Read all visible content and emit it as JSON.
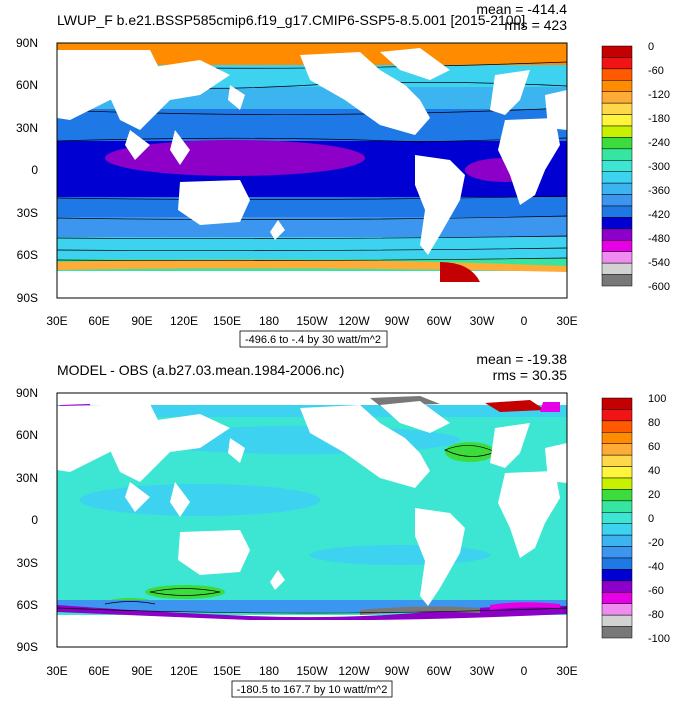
{
  "panels": [
    {
      "title": "LWUP_F b.e21.BSSP585cmip6.f19_g17.CMIP6-SSP5-8.5.001 [2015-2100]",
      "mean": "mean = -414.4",
      "rms": "rms = 423",
      "range_label": "-496.6 to -.4 by 30 watt/m^2",
      "lat_labels": [
        "90N",
        "60N",
        "30N",
        "0",
        "30S",
        "60S",
        "90S"
      ],
      "lon_labels": [
        "30E",
        "60E",
        "90E",
        "120E",
        "150E",
        "180",
        "150W",
        "120W",
        "90W",
        "60W",
        "30W",
        "0",
        "30E"
      ],
      "colorbar": {
        "labels": [
          "0",
          "-60",
          "-120",
          "-180",
          "-240",
          "-300",
          "-360",
          "-420",
          "-480",
          "-540",
          "-600"
        ],
        "colors": [
          "#c40000",
          "#f01414",
          "#ff5a00",
          "#ff8c00",
          "#ffab38",
          "#ffd84a",
          "#fff53c",
          "#c8f000",
          "#3cdc3c",
          "#36e6a0",
          "#3ce6d2",
          "#3cd2f0",
          "#3cb4f0",
          "#3c96f0",
          "#1e78e6",
          "#0000d2",
          "#8c00c8",
          "#e600e6",
          "#f08cf0",
          "#d2d2d2",
          "#787878"
        ]
      }
    },
    {
      "title": "MODEL - OBS (a.b27.03.mean.1984-2006.nc)",
      "mean": "mean = -19.38",
      "rms": "rms = 30.35",
      "range_label": "-180.5 to 167.7 by 10 watt/m^2",
      "lat_labels": [
        "90N",
        "60N",
        "30N",
        "0",
        "30S",
        "60S",
        "90S"
      ],
      "lon_labels": [
        "30E",
        "60E",
        "90E",
        "120E",
        "150E",
        "180",
        "150W",
        "120W",
        "90W",
        "60W",
        "30W",
        "0",
        "30E"
      ],
      "colorbar": {
        "labels": [
          "100",
          "80",
          "60",
          "40",
          "20",
          "0",
          "-20",
          "-40",
          "-60",
          "-80",
          "-100"
        ],
        "colors": [
          "#c40000",
          "#f01414",
          "#ff5a00",
          "#ff8c00",
          "#ffab38",
          "#ffd84a",
          "#fff53c",
          "#c8f000",
          "#3cdc3c",
          "#36e6a0",
          "#3ce6d2",
          "#3cd2f0",
          "#3cb4f0",
          "#3c96f0",
          "#1e78e6",
          "#0000d2",
          "#8c00c8",
          "#e600e6",
          "#f08cf0",
          "#d2d2d2",
          "#787878"
        ]
      }
    }
  ],
  "colors": {
    "ocean_top_band_north": "#ff8c00",
    "ocean_top_arctic_edge": "#ffab38",
    "ocean_top_n_high": "#3cd2f0",
    "ocean_top_n_mid": "#3cb4f0",
    "ocean_top_n_sub": "#1e78e6",
    "ocean_top_tropics": "#0000d2",
    "ocean_top_warm_pool": "#8c00c8",
    "ocean_top_s_sub": "#1e78e6",
    "ocean_top_s_mid": "#3c96f0",
    "ocean_top_s_high": "#3cd2f0",
    "ocean_top_s_cold": "#36e6a0",
    "ocean_top_antarctic": "#ff8c00",
    "ocean_bot_base": "#3ce6d2",
    "ocean_bot_light": "#36e6a0",
    "ocean_bot_blue": "#3cb4f0",
    "ocean_bot_green": "#3cdc3c",
    "ocean_bot_purple": "#8c00c8",
    "ocean_bot_gray": "#787878",
    "land": "#ffffff"
  }
}
